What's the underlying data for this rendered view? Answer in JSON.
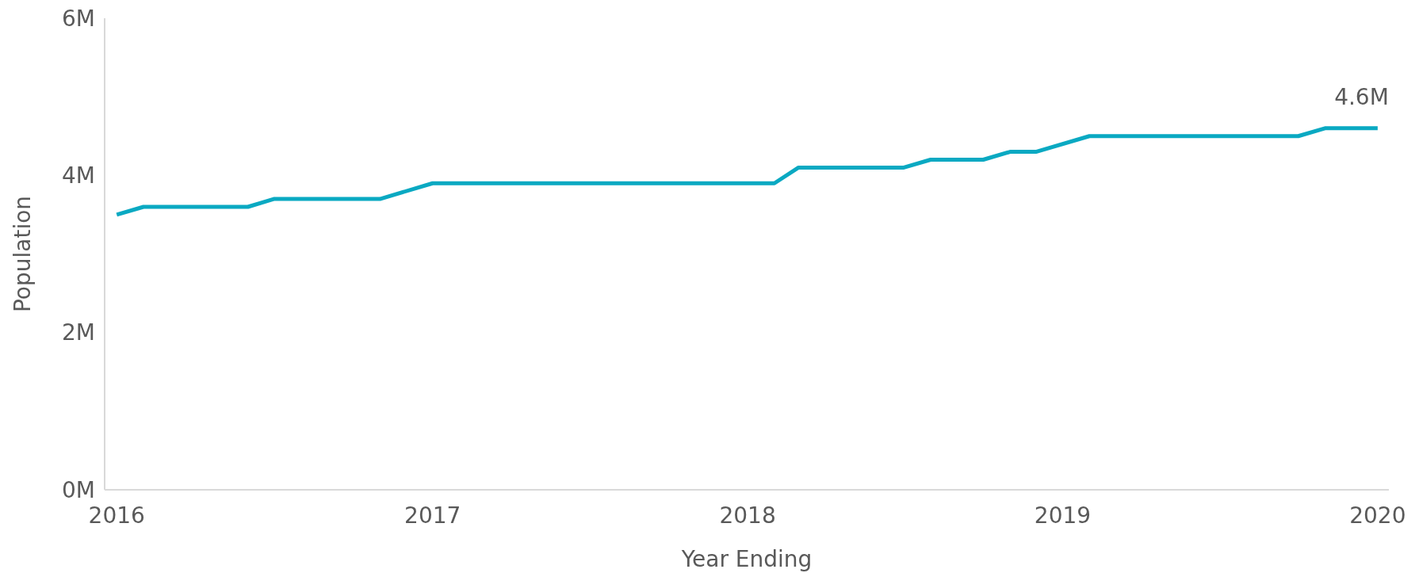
{
  "chart_data": {
    "type": "line",
    "xlabel": "Year Ending",
    "ylabel": "Population",
    "x": [
      "2016-01",
      "2016-02",
      "2016-06",
      "2016-07",
      "2016-11",
      "2017-01",
      "2018-02",
      "2018-03",
      "2018-07",
      "2018-08",
      "2018-10",
      "2018-11",
      "2018-12",
      "2019-02",
      "2019-10",
      "2019-11",
      "2020-01"
    ],
    "series": [
      {
        "color": "#0aa9c2",
        "values": [
          3500000,
          3600000,
          3600000,
          3700000,
          3700000,
          3900000,
          3900000,
          4100000,
          4100000,
          4200000,
          4200000,
          4300000,
          4300000,
          4500000,
          4500000,
          4600000,
          4600000
        ],
        "value_labels": [
          null,
          null,
          null,
          null,
          null,
          null,
          null,
          null,
          null,
          null,
          null,
          null,
          null,
          null,
          null,
          null,
          "4.6M"
        ]
      }
    ],
    "xlim": [
      "2015-12-18",
      "2020-01-14"
    ],
    "xticks": [
      "2016",
      "2017",
      "2018",
      "2019",
      "2020"
    ],
    "ylim": [
      0,
      6000000
    ],
    "yticks": [
      {
        "value": 0,
        "label": "0M"
      },
      {
        "value": 2000000,
        "label": "2M"
      },
      {
        "value": 4000000,
        "label": "4M"
      },
      {
        "value": 6000000,
        "label": "6M"
      }
    ],
    "grid": false,
    "marker": "none",
    "line_style": "solid"
  }
}
